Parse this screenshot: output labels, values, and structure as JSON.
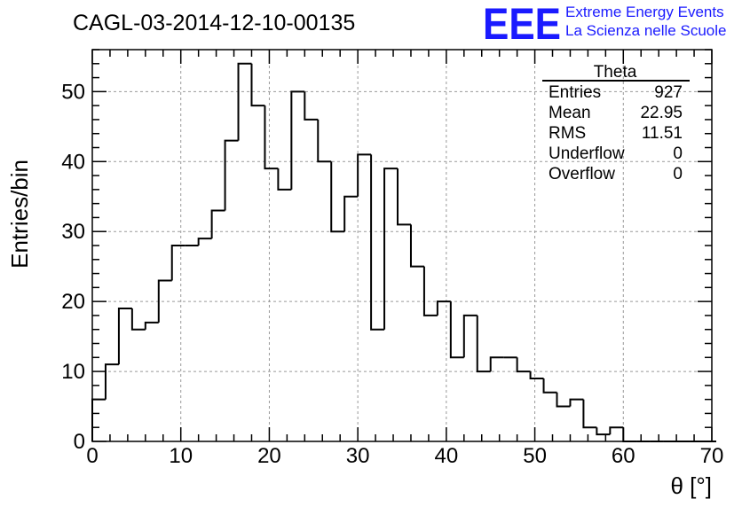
{
  "header": {
    "title": "CAGL-03-2014-12-10-00135",
    "logo_text": "EEE",
    "logo_line1": "Extreme Energy Events",
    "logo_line2": "La Scienza nelle Scuole"
  },
  "stats": {
    "name": "Theta",
    "rows": [
      {
        "label": "Entries",
        "value": "927"
      },
      {
        "label": "Mean",
        "value": "22.95"
      },
      {
        "label": "RMS",
        "value": "11.51"
      },
      {
        "label": "Underflow",
        "value": "0"
      },
      {
        "label": "Overflow",
        "value": "0"
      }
    ]
  },
  "colors": {
    "line": "#000000",
    "grid": "#999999",
    "logo": "#1a1aff"
  },
  "chart_data": {
    "type": "bar",
    "style": "step-histogram",
    "title": "CAGL-03-2014-12-10-00135",
    "xlabel": "θ [°]",
    "ylabel": "Entries/bin",
    "xlim": [
      0,
      70
    ],
    "ylim": [
      0,
      56
    ],
    "bin_width": 1.5,
    "x_ticks": [
      0,
      10,
      20,
      30,
      40,
      50,
      60,
      70
    ],
    "y_ticks": [
      0,
      10,
      20,
      30,
      40,
      50
    ],
    "grid": true,
    "values": [
      6,
      11,
      19,
      16,
      17,
      23,
      28,
      28,
      29,
      33,
      43,
      54,
      48,
      39,
      36,
      50,
      46,
      40,
      30,
      35,
      41,
      16,
      39,
      31,
      25,
      18,
      20,
      12,
      18,
      10,
      12,
      12,
      10,
      9,
      7,
      5,
      6,
      2,
      1,
      2,
      0,
      0,
      0,
      0,
      0,
      0,
      0
    ]
  }
}
